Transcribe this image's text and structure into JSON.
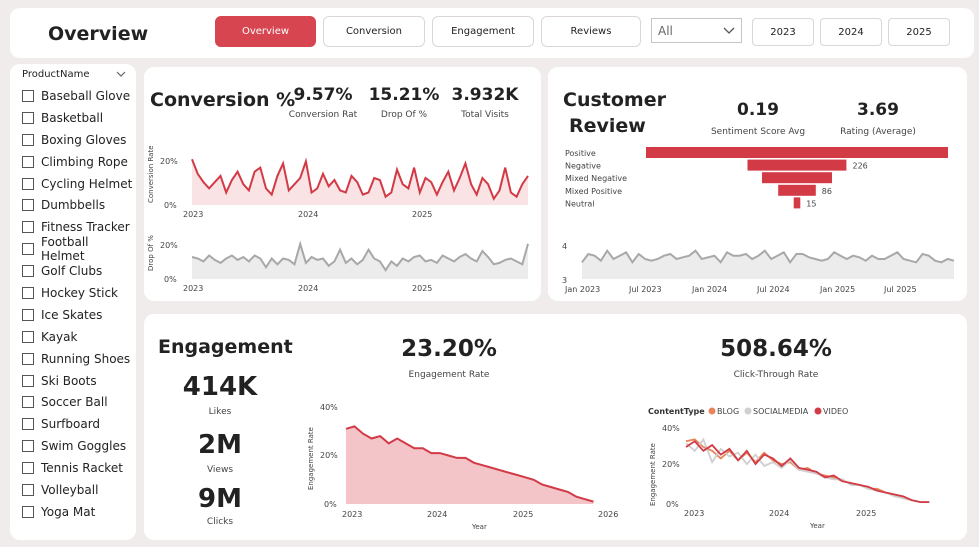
{
  "header": {
    "title": "Overview",
    "tabs": [
      {
        "label": "Overview",
        "active": true
      },
      {
        "label": "Conversion",
        "active": false
      },
      {
        "label": "Engagement",
        "active": false
      },
      {
        "label": "Reviews",
        "active": false
      }
    ],
    "dropdown_value": "All",
    "years": [
      "2023",
      "2024",
      "2025"
    ]
  },
  "slicer": {
    "title": "ProductName",
    "items": [
      "Baseball Glove",
      "Basketball",
      "Boxing Gloves",
      "Climbing Rope",
      "Cycling Helmet",
      "Dumbbells",
      "Fitness Tracker",
      "Football Helmet",
      "Golf Clubs",
      "Hockey Stick",
      "Ice Skates",
      "Kayak",
      "Running Shoes",
      "Ski Boots",
      "Soccer Ball",
      "Surfboard",
      "Swim Goggles",
      "Tennis Racket",
      "Volleyball",
      "Yoga Mat"
    ]
  },
  "conversion": {
    "title": "Conversion %",
    "kpis": [
      {
        "value": "9.57%",
        "label": "Conversion Rat"
      },
      {
        "value": "15.21%",
        "label": "Drop Of %"
      },
      {
        "value": "3.932K",
        "label": "Total Visits"
      }
    ],
    "chart1_ylabel": "Conversion Rate",
    "chart2_ylabel": "Drop Of %",
    "chart1_yticks": [
      "20%",
      "0%"
    ],
    "chart2_yticks": [
      "20%",
      "0%"
    ],
    "xticks": [
      "2023",
      "2024",
      "2025"
    ]
  },
  "review": {
    "title_line1": "Customer",
    "title_line2": "Review",
    "kpis": [
      {
        "value": "0.19",
        "label": "Sentiment Score Avg"
      },
      {
        "value": "3.69",
        "label": "Rating (Average)"
      }
    ],
    "line_yticks": [
      "4",
      "3"
    ],
    "line_xticks": [
      "Jan 2023",
      "Jul 2023",
      "Jan 2024",
      "Jul 2024",
      "Jan 2025",
      "Jul 2025"
    ]
  },
  "engagement": {
    "title": "Engagement",
    "stats": [
      {
        "value": "414K",
        "label": "Likes"
      },
      {
        "value": "2M",
        "label": "Views"
      },
      {
        "value": "9M",
        "label": "Clicks"
      }
    ],
    "kpis": [
      {
        "value": "23.20%",
        "label": "Engagement Rate"
      },
      {
        "value": "508.64%",
        "label": "Click-Through Rate"
      }
    ],
    "area_ylabel": "Engagement Rate",
    "area_xlabel": "Year",
    "area_yticks": [
      "40%",
      "20%",
      "0%"
    ],
    "area_xticks": [
      "2023",
      "2024",
      "2025",
      "2026"
    ],
    "line_ylabel": "Engagement Rate",
    "line_xlabel": "Year",
    "line_yticks": [
      "40%",
      "20%",
      "0%"
    ],
    "line_xticks": [
      "2023",
      "2024",
      "2025"
    ],
    "legend_title": "ContentType",
    "legend": [
      {
        "name": "BLOG",
        "color": "#e8845a"
      },
      {
        "name": "SOCIALMEDIA",
        "color": "#cfcfcf"
      },
      {
        "name": "VIDEO",
        "color": "#d23a46"
      }
    ]
  },
  "chart_data": [
    {
      "type": "area",
      "title": "",
      "ylabel": "Conversion Rate",
      "xlabel": "",
      "x_range": [
        "2023-01",
        "2025-12"
      ],
      "ylim": [
        0,
        25
      ],
      "color": "#d23a46",
      "values": [
        22,
        15,
        11,
        8,
        11,
        14,
        6,
        12,
        16,
        10,
        7,
        16,
        18,
        8,
        5,
        14,
        20,
        7,
        10,
        13,
        21,
        6,
        8,
        15,
        9,
        12,
        7,
        6,
        14,
        11,
        5,
        6,
        13,
        12,
        4,
        6,
        17,
        10,
        8,
        18,
        6,
        13,
        11,
        5,
        11,
        16,
        7,
        13,
        20,
        10,
        5,
        13,
        10,
        3,
        7,
        18,
        6,
        4,
        10,
        14
      ]
    },
    {
      "type": "area",
      "title": "",
      "ylabel": "Drop Of %",
      "xlabel": "",
      "x_range": [
        "2023-01",
        "2025-12"
      ],
      "ylim": [
        0,
        30
      ],
      "color": "#a8a8a8",
      "values": [
        15,
        14,
        12,
        16,
        13,
        11,
        14,
        16,
        13,
        15,
        12,
        16,
        14,
        8,
        14,
        10,
        14,
        13,
        10,
        24,
        11,
        15,
        13,
        14,
        9,
        12,
        20,
        11,
        14,
        10,
        13,
        20,
        14,
        12,
        6,
        12,
        9,
        14,
        12,
        15,
        16,
        12,
        13,
        11,
        16,
        14,
        12,
        15,
        17,
        14,
        12,
        19,
        15,
        10,
        11,
        13,
        14,
        12,
        10,
        24
      ]
    },
    {
      "type": "bar",
      "title": "",
      "orientation": "horizontal",
      "categories": [
        "Positive",
        "Negative",
        "Mixed Negative",
        "Mixed Positive",
        "Neutral"
      ],
      "values": [
        690,
        226,
        160,
        86,
        15
      ],
      "data_labels": [
        "",
        "226",
        "",
        "86",
        "15"
      ],
      "color": "#d23a46"
    },
    {
      "type": "area",
      "title": "",
      "x_range": [
        "Jan 2023",
        "Dec 2025"
      ],
      "ylim": [
        3,
        4.2
      ],
      "color": "#a8a8a8",
      "values": [
        3.5,
        3.75,
        3.7,
        3.55,
        3.85,
        3.6,
        3.7,
        3.8,
        3.5,
        3.75,
        3.6,
        3.55,
        3.6,
        3.7,
        3.75,
        3.6,
        3.65,
        3.7,
        3.85,
        3.6,
        3.65,
        3.7,
        3.5,
        3.8,
        3.7,
        3.7,
        3.75,
        3.6,
        3.7,
        3.85,
        3.6,
        3.7,
        3.8,
        3.5,
        3.75,
        3.75,
        3.65,
        3.6,
        3.55,
        3.6,
        3.8,
        3.7,
        3.6,
        3.7,
        3.65,
        3.55,
        3.7,
        3.6,
        3.6,
        3.7,
        3.8,
        3.6,
        3.55,
        3.5,
        3.75,
        3.7,
        3.55,
        3.5,
        3.6,
        3.55
      ]
    },
    {
      "type": "area",
      "title": "",
      "ylabel": "Engagement Rate",
      "xlabel": "Year",
      "xlim": [
        2023,
        2026
      ],
      "ylim": [
        0,
        40
      ],
      "color": "#d23a46",
      "x": [
        2023.0,
        2023.1,
        2023.2,
        2023.3,
        2023.4,
        2023.5,
        2023.6,
        2023.7,
        2023.8,
        2023.9,
        2024.0,
        2024.1,
        2024.2,
        2024.3,
        2024.4,
        2024.5,
        2024.6,
        2024.7,
        2024.8,
        2024.9,
        2025.0,
        2025.1,
        2025.2,
        2025.3,
        2025.4,
        2025.5,
        2025.6,
        2025.7,
        2025.8,
        2025.9
      ],
      "values": [
        31,
        32,
        29,
        27,
        28,
        25,
        27,
        25,
        23,
        23,
        21,
        21,
        20,
        19,
        19,
        17,
        16,
        15,
        14,
        13,
        12,
        11,
        10,
        8,
        7,
        6,
        5,
        3,
        2,
        1
      ]
    },
    {
      "type": "line",
      "title": "",
      "ylabel": "Engagement Rate",
      "xlabel": "Year",
      "xlim": [
        2023,
        2025.9
      ],
      "ylim": [
        0,
        40
      ],
      "series": [
        {
          "name": "BLOG",
          "color": "#e8845a",
          "x": [
            2023.0,
            2023.1,
            2023.2,
            2023.3,
            2023.4,
            2023.5,
            2023.6,
            2023.7,
            2023.8,
            2023.9,
            2024.0,
            2024.1,
            2024.2,
            2024.3,
            2024.4,
            2024.5,
            2024.6,
            2024.7,
            2024.8,
            2024.9,
            2025.0,
            2025.1,
            2025.2,
            2025.3,
            2025.4,
            2025.5,
            2025.6,
            2025.7,
            2025.8
          ],
          "values": [
            33,
            34,
            30,
            28,
            24,
            28,
            23,
            27,
            22,
            27,
            23,
            21,
            22,
            18,
            19,
            16,
            15,
            14,
            12,
            11,
            10,
            8,
            8,
            6,
            5,
            3,
            2,
            1,
            1
          ]
        },
        {
          "name": "SOCIALMEDIA",
          "color": "#cfcfcf",
          "x": [
            2023.0,
            2023.1,
            2023.2,
            2023.3,
            2023.4,
            2023.5,
            2023.6,
            2023.7,
            2023.8,
            2023.9,
            2024.0,
            2024.1,
            2024.2,
            2024.3,
            2024.4,
            2024.5,
            2024.6,
            2024.7,
            2024.8,
            2024.9,
            2025.0,
            2025.1,
            2025.2,
            2025.3,
            2025.4,
            2025.5,
            2025.6,
            2025.7,
            2025.8
          ],
          "values": [
            32,
            28,
            34,
            22,
            29,
            25,
            27,
            21,
            26,
            20,
            22,
            19,
            23,
            18,
            17,
            16,
            14,
            13,
            13,
            10,
            10,
            8,
            7,
            6,
            4,
            3,
            2,
            1,
            1
          ]
        },
        {
          "name": "VIDEO",
          "color": "#d23a46",
          "x": [
            2023.0,
            2023.1,
            2023.2,
            2023.3,
            2023.4,
            2023.5,
            2023.6,
            2023.7,
            2023.8,
            2023.9,
            2024.0,
            2024.1,
            2024.2,
            2024.3,
            2024.4,
            2024.5,
            2024.6,
            2024.7,
            2024.8,
            2024.9,
            2025.0,
            2025.1,
            2025.2,
            2025.3,
            2025.4,
            2025.5,
            2025.6,
            2025.7,
            2025.8
          ],
          "values": [
            30,
            33,
            28,
            31,
            26,
            29,
            23,
            28,
            21,
            26,
            24,
            20,
            24,
            19,
            18,
            17,
            14,
            15,
            12,
            11,
            10,
            9,
            7,
            6,
            5,
            4,
            2,
            1,
            1
          ]
        }
      ]
    }
  ]
}
